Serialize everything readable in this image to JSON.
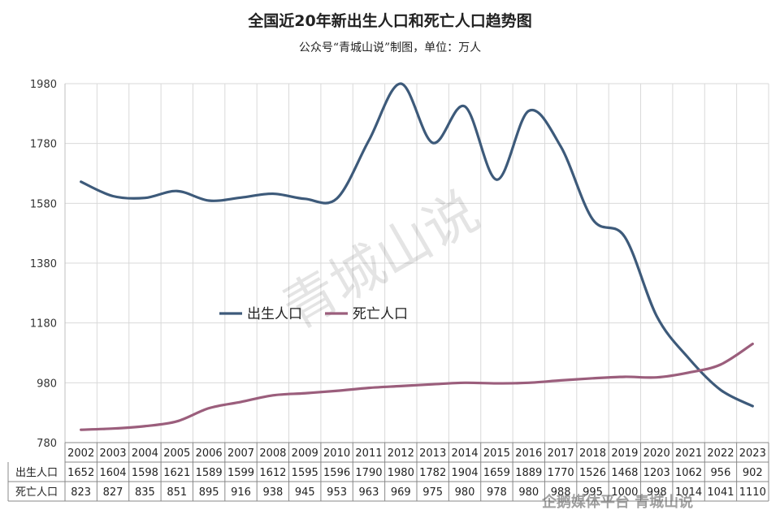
{
  "title": "全国近20年新出生人口和死亡人口趋势图",
  "subtitle": "公众号“青城山说”制图，单位：万人",
  "watermark": "青城山说",
  "footer": "企鹅媒体平台 青城山说",
  "chart_data": {
    "type": "line",
    "title": "全国近20年新出生人口和死亡人口趋势图",
    "subtitle": "公众号“青城山说”制图，单位：万人",
    "categories": [
      "2002",
      "2003",
      "2004",
      "2005",
      "2006",
      "2007",
      "2008",
      "2009",
      "2010",
      "2011",
      "2012",
      "2013",
      "2014",
      "2015",
      "2016",
      "2017",
      "2018",
      "2019",
      "2020",
      "2021",
      "2022",
      "2023"
    ],
    "series": [
      {
        "name": "出生人口",
        "color": "#3d5a7a",
        "values": [
          1652,
          1604,
          1598,
          1621,
          1589,
          1599,
          1612,
          1595,
          1596,
          1790,
          1980,
          1782,
          1904,
          1659,
          1889,
          1770,
          1526,
          1468,
          1203,
          1062,
          956,
          902
        ]
      },
      {
        "name": "死亡人口",
        "color": "#9b5e7c",
        "values": [
          823,
          827,
          835,
          851,
          895,
          916,
          938,
          945,
          953,
          963,
          969,
          975,
          980,
          978,
          980,
          988,
          995,
          1000,
          998,
          1014,
          1041,
          1110
        ]
      }
    ],
    "ylim": [
      780,
      1980
    ],
    "yticks": [
      780,
      980,
      1180,
      1380,
      1580,
      1780,
      1980
    ],
    "grid": true,
    "legend_position": "center-left",
    "table_rows": [
      "出生人口",
      "死亡人口"
    ]
  }
}
